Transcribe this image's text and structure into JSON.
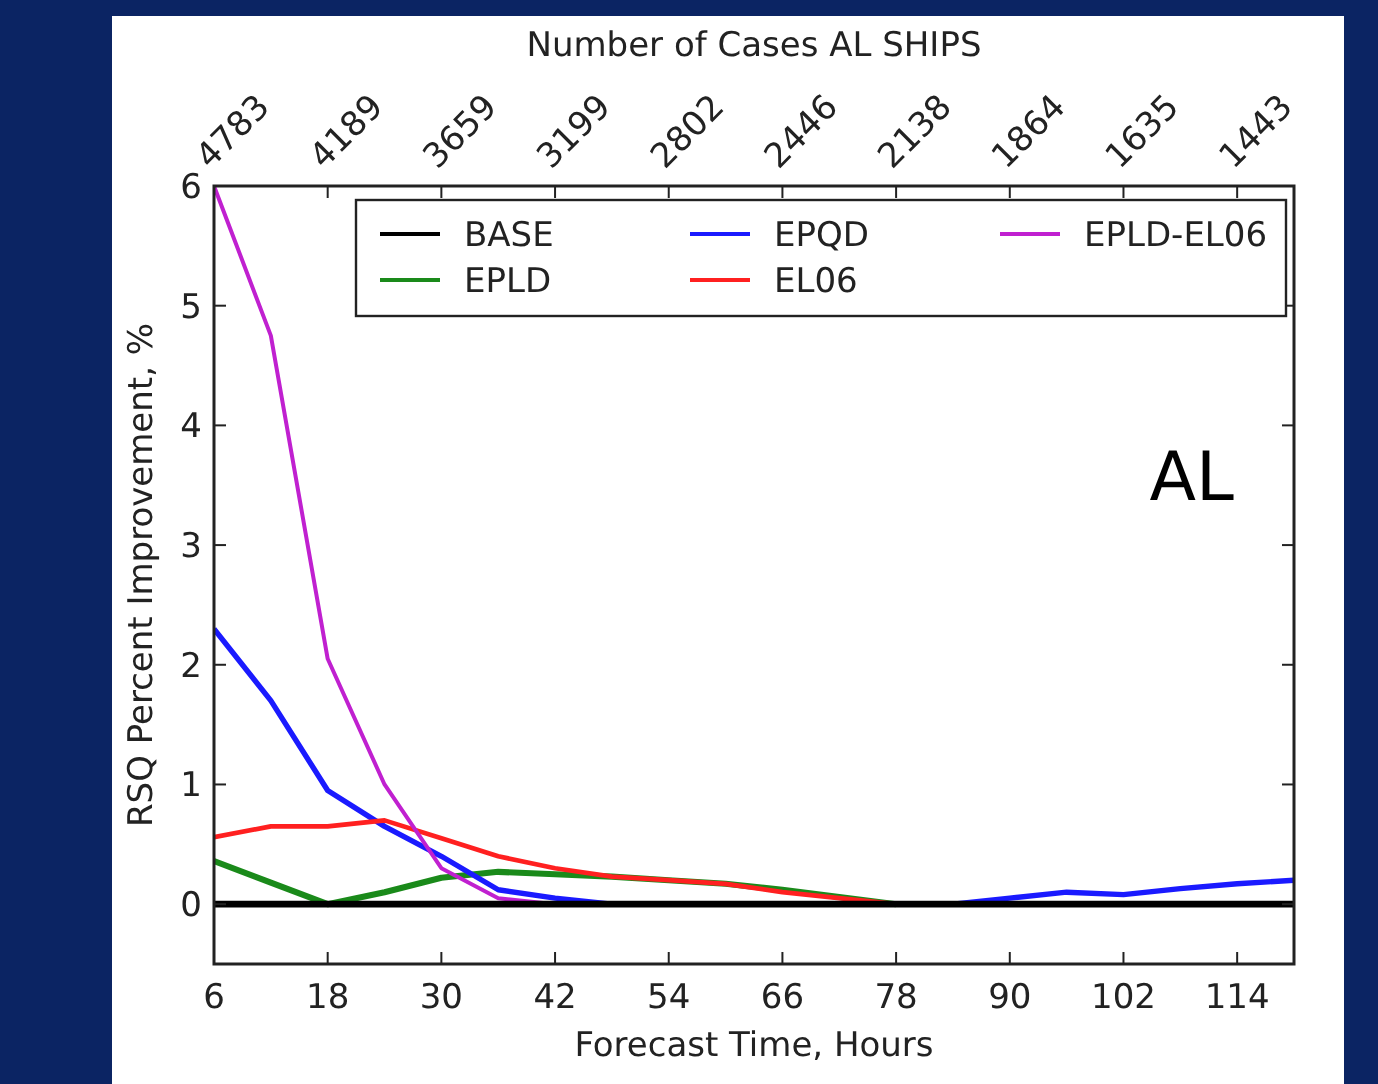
{
  "chart_data": {
    "type": "line",
    "xlabel": "Forecast Time, Hours",
    "ylabel": "RSQ Percent Improvement, %",
    "x2label": "Number of Cases AL SHIPS",
    "x": [
      6,
      12,
      18,
      24,
      30,
      36,
      42,
      48,
      54,
      60,
      66,
      72,
      78,
      84,
      90,
      96,
      102,
      108,
      114,
      120
    ],
    "xlim": [
      6,
      120
    ],
    "xticks": [
      6,
      18,
      30,
      42,
      54,
      66,
      78,
      90,
      102,
      114
    ],
    "ylim": [
      -0.5,
      6
    ],
    "yticks": [
      0,
      1,
      2,
      3,
      4,
      5,
      6
    ],
    "legend": "top right",
    "grid": false,
    "line_style": "solid",
    "marker": "none",
    "annotations": [
      "4783",
      "4189",
      "3659",
      "3199",
      "2802",
      "2446",
      "2138",
      "1864",
      "1635",
      "1443",
      "AL"
    ],
    "series": [
      {
        "name": "BASE",
        "color": "#000000",
        "values": [
          0,
          0,
          0,
          0,
          0,
          0,
          0,
          0,
          0,
          0,
          0,
          0,
          0,
          0,
          0,
          0,
          0,
          0,
          0,
          0
        ]
      },
      {
        "name": "EPLD",
        "color": "#1a8a1a",
        "values": [
          0.36,
          0.18,
          0,
          0.1,
          0.22,
          0.27,
          0.25,
          0.23,
          0.2,
          0.17,
          0.12,
          0.06,
          0,
          null,
          null,
          null,
          null,
          null,
          null,
          null
        ]
      },
      {
        "name": "EPQD",
        "color": "#1a1aff",
        "values": [
          2.3,
          1.7,
          0.95,
          0.65,
          0.4,
          0.12,
          0.05,
          0,
          null,
          null,
          null,
          null,
          null,
          0,
          0.05,
          0.1,
          0.08,
          0.13,
          0.17,
          0.2
        ]
      },
      {
        "name": "EL06",
        "color": "#ff2020",
        "values": [
          0.56,
          0.65,
          0.65,
          0.7,
          0.55,
          0.4,
          0.3,
          0.23,
          0.2,
          0.17,
          0.1,
          0.05,
          0,
          null,
          null,
          null,
          null,
          null,
          null,
          null
        ]
      },
      {
        "name": "EPLD-EL06",
        "color": "#c020d0",
        "values": [
          6,
          4.75,
          2.05,
          1,
          0.3,
          0.05,
          0,
          null,
          null,
          null,
          null,
          null,
          null,
          null,
          null,
          null,
          null,
          null,
          null,
          null
        ]
      }
    ]
  }
}
